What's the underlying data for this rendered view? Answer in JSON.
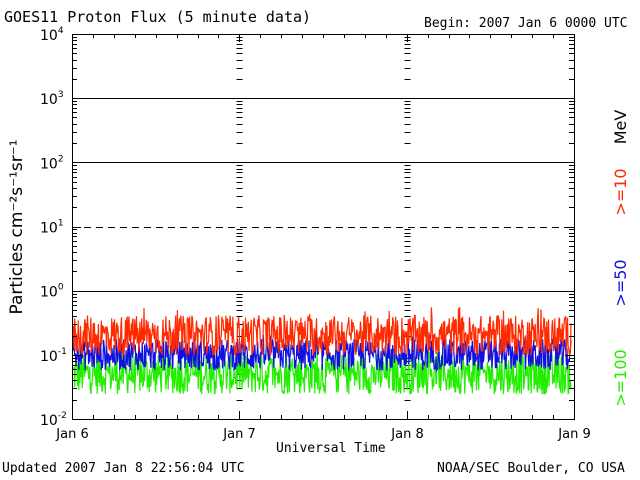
{
  "header": {
    "title": "GOES11 Proton Flux (5 minute data)",
    "begin": "Begin: 2007 Jan 6 0000 UTC"
  },
  "footer": {
    "updated": "Updated 2007 Jan  8 22:56:04 UTC",
    "source": "NOAA/SEC Boulder, CO USA"
  },
  "chart_data": {
    "type": "line",
    "xlabel": "Universal Time",
    "ylabel": "Particles cm⁻²s⁻¹sr⁻¹",
    "yscale": "log",
    "ylim": [
      0.01,
      10000
    ],
    "xlim": [
      "2007-01-06",
      "2007-01-09"
    ],
    "x_ticks": [
      "Jan 6",
      "Jan 7",
      "Jan 8",
      "Jan 9"
    ],
    "y_ticks": [
      {
        "base": "10",
        "exp": "-2"
      },
      {
        "base": "10",
        "exp": "-1"
      },
      {
        "base": "10",
        "exp": "0"
      },
      {
        "base": "10",
        "exp": "1"
      },
      {
        "base": "10",
        "exp": "2"
      },
      {
        "base": "10",
        "exp": "3"
      },
      {
        "base": "10",
        "exp": "4"
      }
    ],
    "threshold_lines": [
      {
        "value": 1,
        "style": "solid"
      },
      {
        "value": 10,
        "style": "dashed"
      },
      {
        "value": 100,
        "style": "solid"
      },
      {
        "value": 1000,
        "style": "solid"
      }
    ],
    "legend_unit": "MeV",
    "series": [
      {
        "name": ">=10",
        "color": "#ff2a00",
        "base": 0.2,
        "spread": 0.45,
        "min": 0.1,
        "max": 0.55
      },
      {
        "name": ">=50",
        "color": "#1010e0",
        "base": 0.1,
        "spread": 0.35,
        "min": 0.05,
        "max": 0.25
      },
      {
        "name": ">=100",
        "color": "#22ee00",
        "base": 0.05,
        "spread": 0.45,
        "min": 0.02,
        "max": 0.11
      }
    ]
  }
}
